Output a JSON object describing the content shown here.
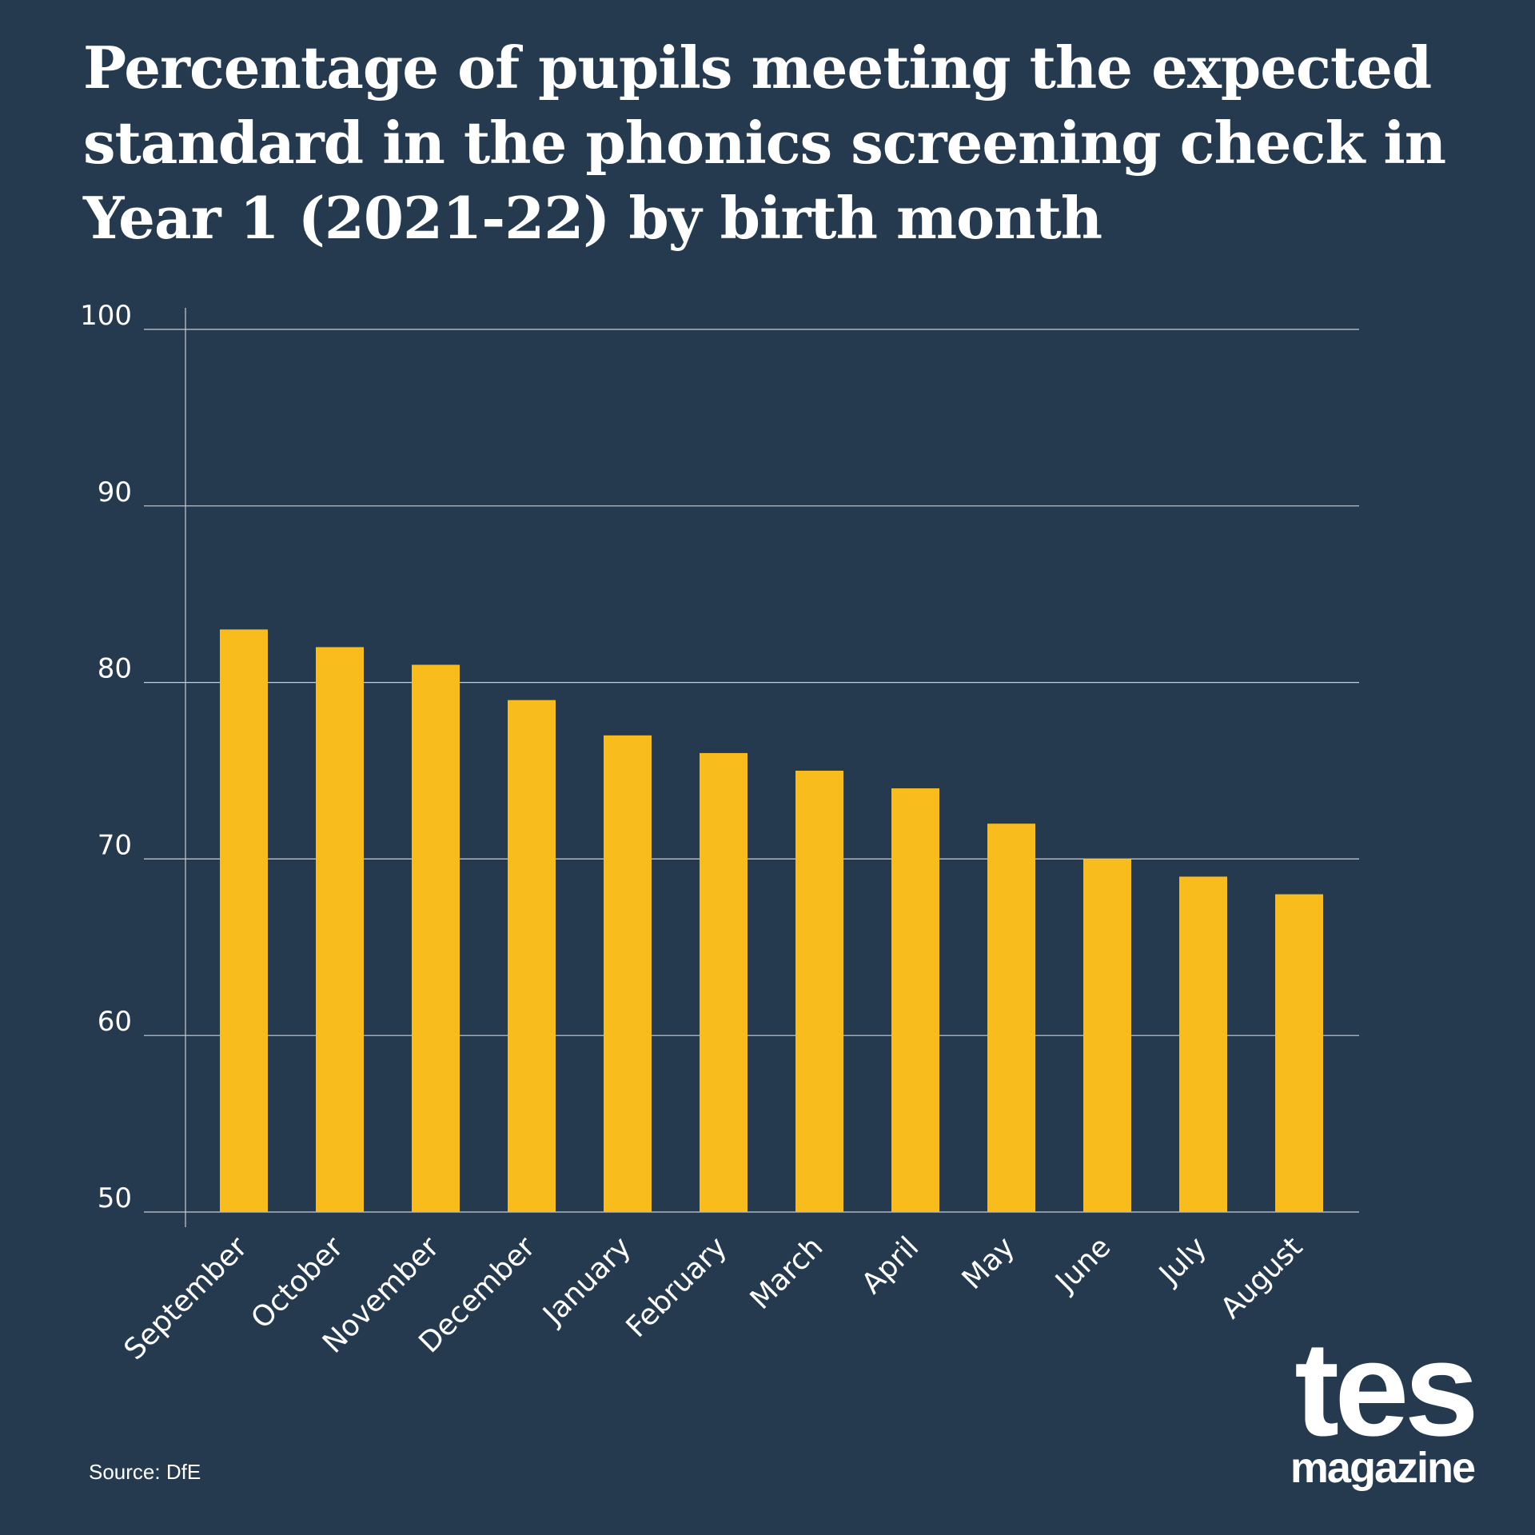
{
  "title": "Percentage of pupils meeting the expected standard in the phonics screening check in Year 1 (2021-22) by birth month",
  "source": "Source: DfE",
  "logo": {
    "main": "tes",
    "sub": "magazine"
  },
  "colors": {
    "background": "#263a4f",
    "bar": "#f8bc1c",
    "text": "#ffffff",
    "grid": "#c8ced6"
  },
  "chart_data": {
    "type": "bar",
    "title": "Percentage of pupils meeting the expected standard in the phonics screening check in Year 1 (2021-22) by birth month",
    "xlabel": "",
    "ylabel": "",
    "categories": [
      "September",
      "October",
      "November",
      "December",
      "January",
      "February",
      "March",
      "April",
      "May",
      "June",
      "July",
      "August"
    ],
    "values": [
      83,
      82,
      81,
      79,
      77,
      76,
      75,
      74,
      72,
      70,
      69,
      68
    ],
    "ylim": [
      50,
      100
    ],
    "yticks": [
      50,
      60,
      70,
      80,
      90,
      100
    ],
    "grid": true,
    "legend": "none"
  }
}
